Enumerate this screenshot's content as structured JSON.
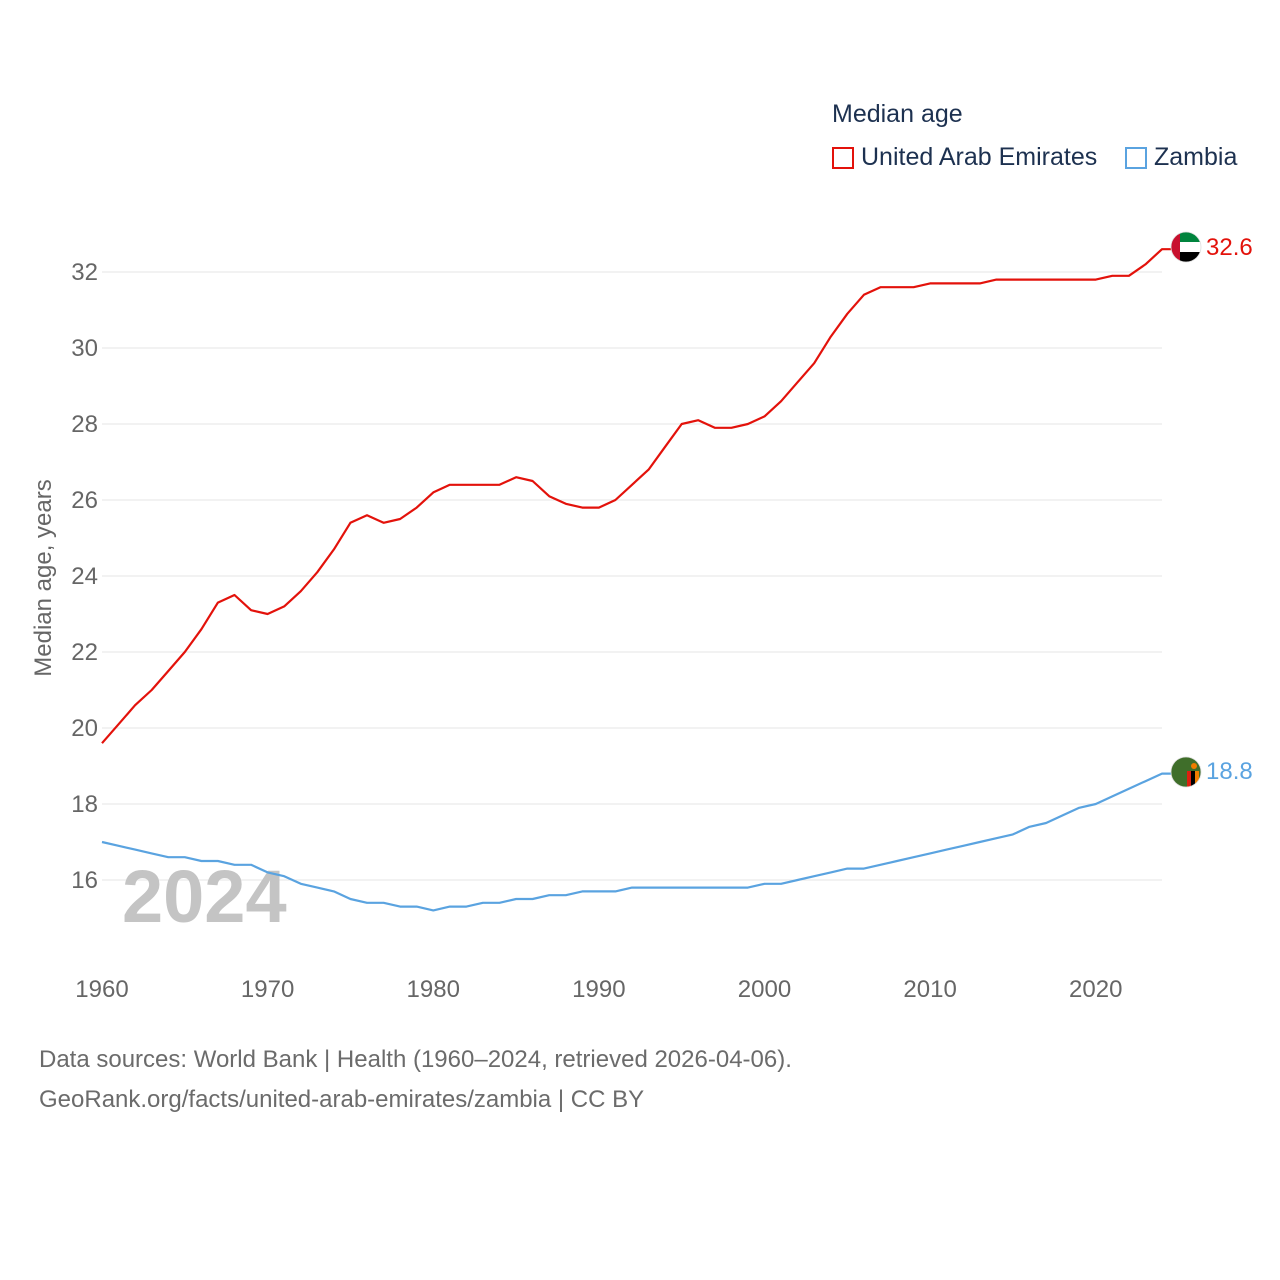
{
  "colors": {
    "uae": "#e3120b",
    "zambia": "#5aa3e0",
    "grid": "#e6e6e6",
    "axis_text": "#666666",
    "watermark": "#c4c4c4"
  },
  "legend": {
    "title": "Median age",
    "items": [
      {
        "name": "United Arab Emirates",
        "color": "#e3120b"
      },
      {
        "name": "Zambia",
        "color": "#5aa3e0"
      }
    ]
  },
  "year_watermark": "2024",
  "end_labels": {
    "uae": "32.6",
    "zambia": "18.8"
  },
  "flags": {
    "uae": "uae-flag-icon",
    "zambia": "zambia-flag-icon"
  },
  "footer": {
    "line1": "Data sources: World Bank | Health (1960–2024, retrieved 2026-04-06).",
    "line2": "GeoRank.org/facts/united-arab-emirates/zambia | CC BY"
  },
  "chart_data": {
    "type": "line",
    "title": "Median age",
    "xlabel": "",
    "ylabel": "Median age, years",
    "xlim": [
      1960,
      2024
    ],
    "ylim": [
      14.5,
      33.2
    ],
    "yticks": [
      16,
      18,
      20,
      22,
      24,
      26,
      28,
      30,
      32
    ],
    "xticks": [
      1960,
      1970,
      1980,
      1990,
      2000,
      2010,
      2020
    ],
    "grid": true,
    "legend": "top-right",
    "x": [
      1960,
      1961,
      1962,
      1963,
      1964,
      1965,
      1966,
      1967,
      1968,
      1969,
      1970,
      1971,
      1972,
      1973,
      1974,
      1975,
      1976,
      1977,
      1978,
      1979,
      1980,
      1981,
      1982,
      1983,
      1984,
      1985,
      1986,
      1987,
      1988,
      1989,
      1990,
      1991,
      1992,
      1993,
      1994,
      1995,
      1996,
      1997,
      1998,
      1999,
      2000,
      2001,
      2002,
      2003,
      2004,
      2005,
      2006,
      2007,
      2008,
      2009,
      2010,
      2011,
      2012,
      2013,
      2014,
      2015,
      2016,
      2017,
      2018,
      2019,
      2020,
      2021,
      2022,
      2023,
      2024
    ],
    "series": [
      {
        "name": "United Arab Emirates",
        "key": "uae",
        "values": [
          19.6,
          20.1,
          20.6,
          21.0,
          21.5,
          22.0,
          22.6,
          23.3,
          23.5,
          23.1,
          23.0,
          23.2,
          23.6,
          24.1,
          24.7,
          25.4,
          25.6,
          25.4,
          25.5,
          25.8,
          26.2,
          26.4,
          26.4,
          26.4,
          26.4,
          26.6,
          26.5,
          26.1,
          25.9,
          25.8,
          25.8,
          26.0,
          26.4,
          26.8,
          27.4,
          28.0,
          28.1,
          27.9,
          27.9,
          28.0,
          28.2,
          28.6,
          29.1,
          29.6,
          30.3,
          30.9,
          31.4,
          31.6,
          31.6,
          31.6,
          31.7,
          31.7,
          31.7,
          31.7,
          31.8,
          31.8,
          31.8,
          31.8,
          31.8,
          31.8,
          31.8,
          31.9,
          31.9,
          32.2,
          32.6
        ]
      },
      {
        "name": "Zambia",
        "key": "zambia",
        "values": [
          17.0,
          16.9,
          16.8,
          16.7,
          16.6,
          16.6,
          16.5,
          16.5,
          16.4,
          16.4,
          16.2,
          16.1,
          15.9,
          15.8,
          15.7,
          15.5,
          15.4,
          15.4,
          15.3,
          15.3,
          15.2,
          15.3,
          15.3,
          15.4,
          15.4,
          15.5,
          15.5,
          15.6,
          15.6,
          15.7,
          15.7,
          15.7,
          15.8,
          15.8,
          15.8,
          15.8,
          15.8,
          15.8,
          15.8,
          15.8,
          15.9,
          15.9,
          16.0,
          16.1,
          16.2,
          16.3,
          16.3,
          16.4,
          16.5,
          16.6,
          16.7,
          16.8,
          16.9,
          17.0,
          17.1,
          17.2,
          17.4,
          17.5,
          17.7,
          17.9,
          18.0,
          18.2,
          18.4,
          18.6,
          18.8
        ]
      }
    ]
  }
}
